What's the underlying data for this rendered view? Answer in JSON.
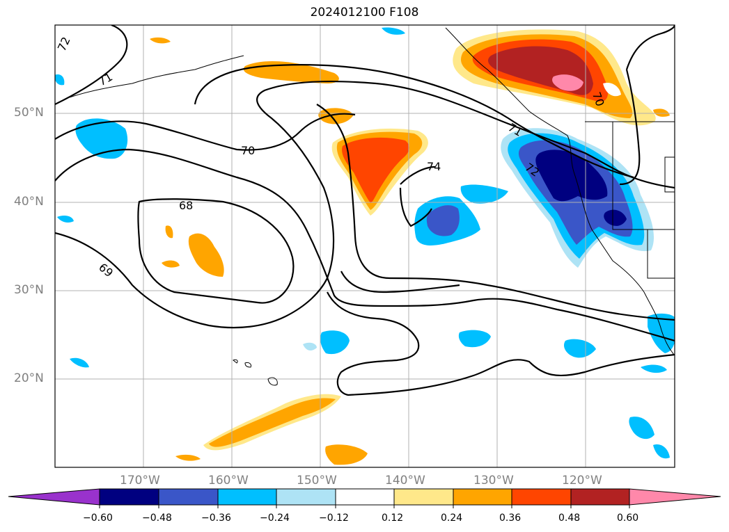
{
  "title": "2024012100 F108",
  "lat_labels": [
    "50°N",
    "40°N",
    "30°N",
    "20°N"
  ],
  "lon_labels": [
    "170°W",
    "160°W",
    "150°W",
    "140°W",
    "130°W",
    "120°W"
  ],
  "contour_labels": [
    "72",
    "71",
    "70",
    "68",
    "69",
    "74",
    "71",
    "70",
    "72"
  ],
  "colorbar": {
    "ticks": [
      "−0.60",
      "−0.48",
      "−0.36",
      "−0.24",
      "−0.12",
      "0.12",
      "0.24",
      "0.36",
      "0.48",
      "0.60"
    ],
    "colors": [
      "#9932cc",
      "#000080",
      "#3a56c8",
      "#00bfff",
      "#aee3f5",
      "#ffffff",
      "#ffe88a",
      "#ffa500",
      "#ff4500",
      "#b22222",
      "#ff88aa"
    ]
  }
}
